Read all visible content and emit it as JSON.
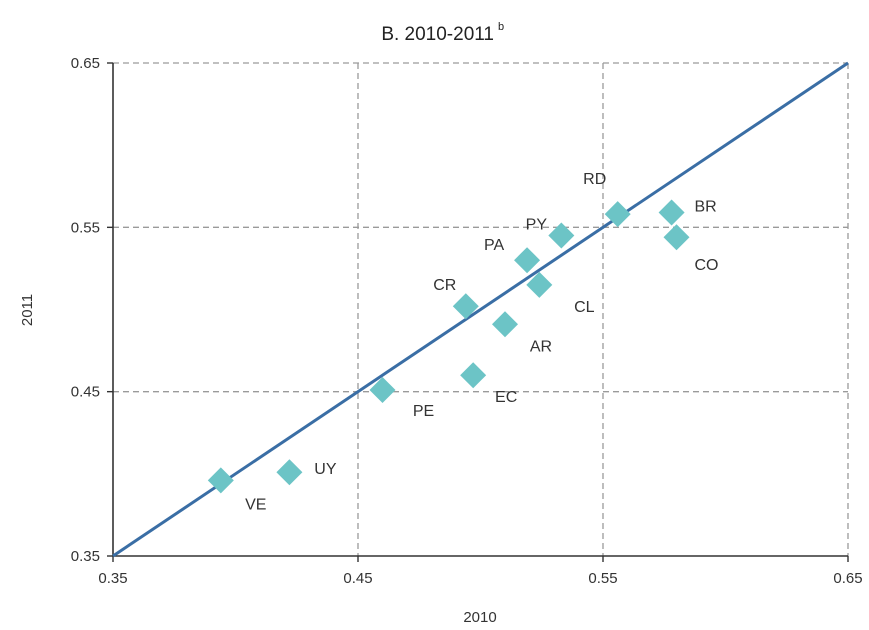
{
  "chart_data": {
    "type": "scatter",
    "title": "B. 2010-2011",
    "title_superscript": "b",
    "xlabel": "2010",
    "ylabel": "2011",
    "xlim": [
      0.35,
      0.65
    ],
    "ylim": [
      0.35,
      0.65
    ],
    "xticks": [
      "0.35",
      "0.45",
      "0.55",
      "0.65"
    ],
    "yticks": [
      "0.35",
      "0.45",
      "0.55",
      "0.65"
    ],
    "grid": true,
    "reference_line": {
      "x": [
        0.35,
        0.65
      ],
      "y": [
        0.35,
        0.65
      ]
    },
    "colors": {
      "points": "#6cc4c6",
      "line": "#3a6ea5",
      "grid": "#9a9a9a"
    },
    "points": [
      {
        "label": "VE",
        "x": 0.394,
        "y": 0.396
      },
      {
        "label": "UY",
        "x": 0.422,
        "y": 0.401
      },
      {
        "label": "PE",
        "x": 0.46,
        "y": 0.451
      },
      {
        "label": "CR",
        "x": 0.494,
        "y": 0.502
      },
      {
        "label": "EC",
        "x": 0.497,
        "y": 0.46
      },
      {
        "label": "AR",
        "x": 0.51,
        "y": 0.491
      },
      {
        "label": "PA",
        "x": 0.519,
        "y": 0.53
      },
      {
        "label": "CL",
        "x": 0.524,
        "y": 0.515
      },
      {
        "label": "PY",
        "x": 0.533,
        "y": 0.545
      },
      {
        "label": "RD",
        "x": 0.556,
        "y": 0.558
      },
      {
        "label": "BR",
        "x": 0.578,
        "y": 0.559
      },
      {
        "label": "CO",
        "x": 0.58,
        "y": 0.544
      }
    ]
  }
}
